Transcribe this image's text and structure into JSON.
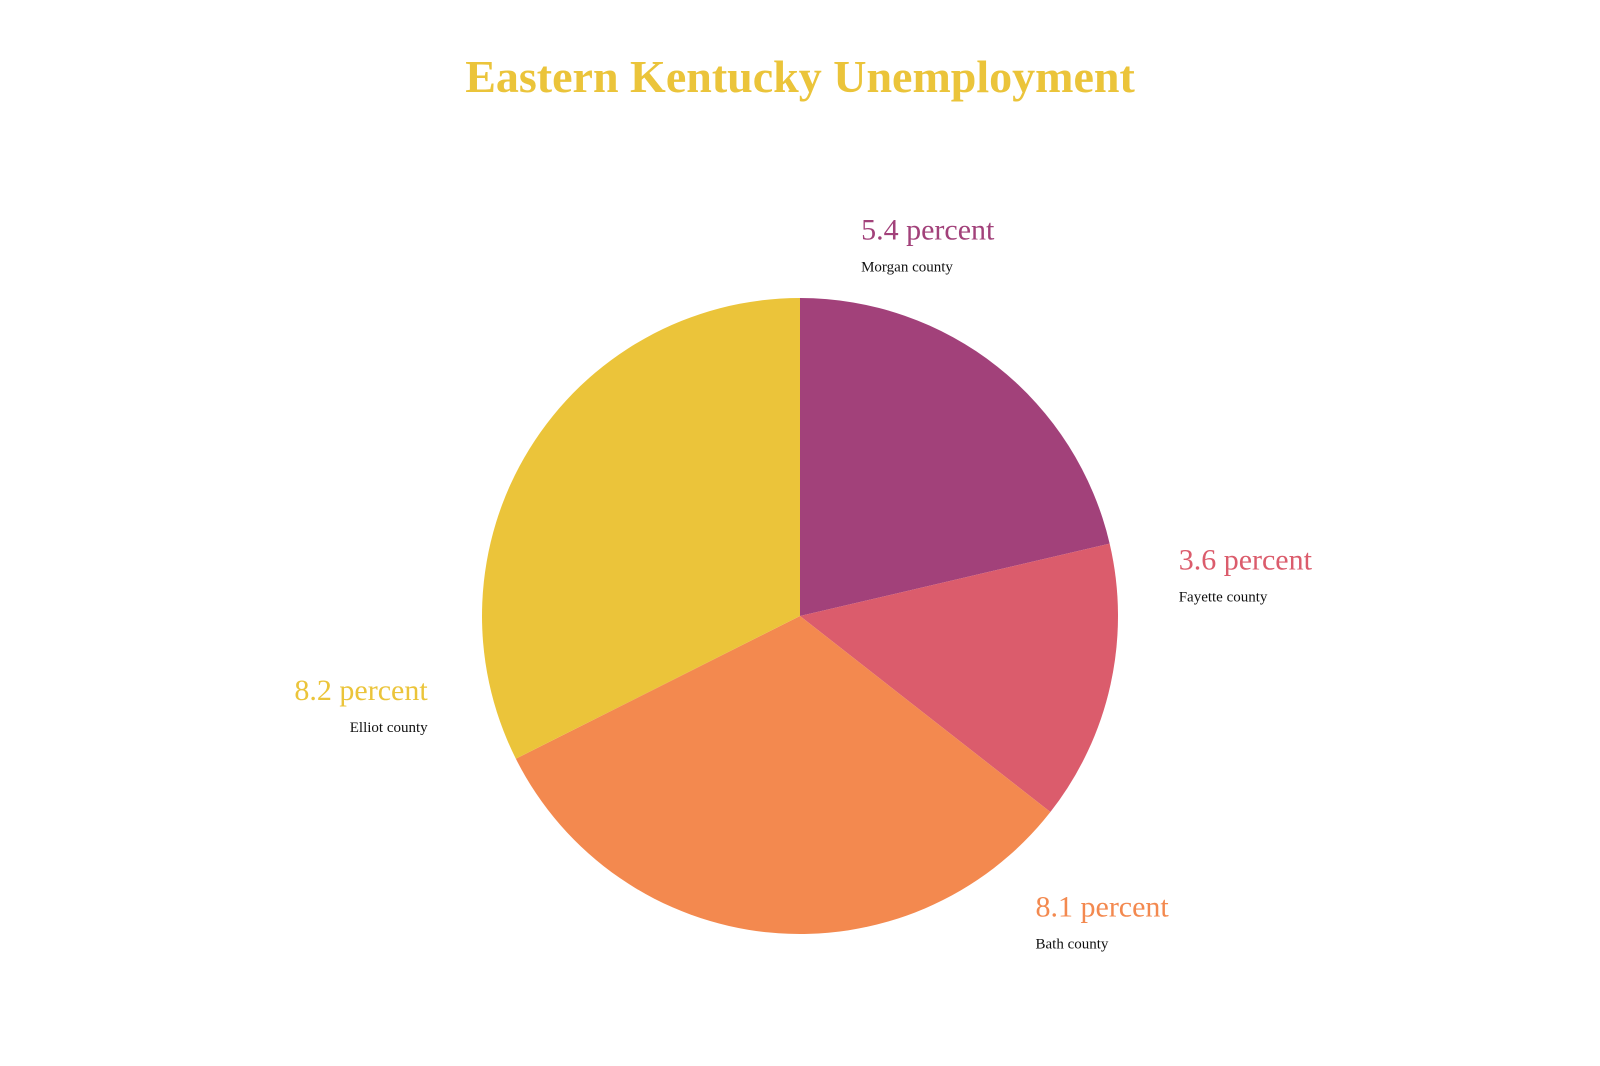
{
  "colors": {
    "title": "#EBC43A",
    "slices": [
      "#A2417A",
      "#DB5C6C",
      "#F3894F",
      "#EBC43A"
    ]
  },
  "chart_data": {
    "type": "pie",
    "title": "Eastern Kentucky Unemployment",
    "start_angle_deg": 0,
    "direction": "clockwise",
    "slices": [
      {
        "category": "Morgan county",
        "value": 5.4,
        "value_label": "5.4 percent",
        "color": "#A2417A"
      },
      {
        "category": "Fayette county",
        "value": 3.6,
        "value_label": "3.6 percent",
        "color": "#DB5C6C"
      },
      {
        "category": "Bath county",
        "value": 8.1,
        "value_label": "8.1 percent",
        "color": "#F3894F"
      },
      {
        "category": "Elliot county",
        "value": 8.2,
        "value_label": "8.2 percent",
        "color": "#EBC43A"
      }
    ]
  }
}
